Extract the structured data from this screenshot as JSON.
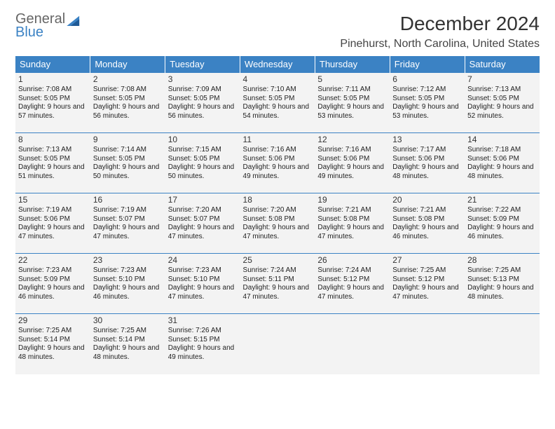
{
  "brand": {
    "top": "General",
    "bottom": "Blue"
  },
  "title": "December 2024",
  "location": "Pinehurst, North Carolina, United States",
  "colors": {
    "header_bg": "#3b82c4",
    "header_text": "#ffffff",
    "cell_bg": "#f3f3f3",
    "border": "#2f6ea8",
    "text": "#222222"
  },
  "day_headers": [
    "Sunday",
    "Monday",
    "Tuesday",
    "Wednesday",
    "Thursday",
    "Friday",
    "Saturday"
  ],
  "weeks": [
    [
      {
        "n": "1",
        "sr": "7:08 AM",
        "ss": "5:05 PM",
        "dl": "9 hours and 57 minutes."
      },
      {
        "n": "2",
        "sr": "7:08 AM",
        "ss": "5:05 PM",
        "dl": "9 hours and 56 minutes."
      },
      {
        "n": "3",
        "sr": "7:09 AM",
        "ss": "5:05 PM",
        "dl": "9 hours and 56 minutes."
      },
      {
        "n": "4",
        "sr": "7:10 AM",
        "ss": "5:05 PM",
        "dl": "9 hours and 54 minutes."
      },
      {
        "n": "5",
        "sr": "7:11 AM",
        "ss": "5:05 PM",
        "dl": "9 hours and 53 minutes."
      },
      {
        "n": "6",
        "sr": "7:12 AM",
        "ss": "5:05 PM",
        "dl": "9 hours and 53 minutes."
      },
      {
        "n": "7",
        "sr": "7:13 AM",
        "ss": "5:05 PM",
        "dl": "9 hours and 52 minutes."
      }
    ],
    [
      {
        "n": "8",
        "sr": "7:13 AM",
        "ss": "5:05 PM",
        "dl": "9 hours and 51 minutes."
      },
      {
        "n": "9",
        "sr": "7:14 AM",
        "ss": "5:05 PM",
        "dl": "9 hours and 50 minutes."
      },
      {
        "n": "10",
        "sr": "7:15 AM",
        "ss": "5:05 PM",
        "dl": "9 hours and 50 minutes."
      },
      {
        "n": "11",
        "sr": "7:16 AM",
        "ss": "5:06 PM",
        "dl": "9 hours and 49 minutes."
      },
      {
        "n": "12",
        "sr": "7:16 AM",
        "ss": "5:06 PM",
        "dl": "9 hours and 49 minutes."
      },
      {
        "n": "13",
        "sr": "7:17 AM",
        "ss": "5:06 PM",
        "dl": "9 hours and 48 minutes."
      },
      {
        "n": "14",
        "sr": "7:18 AM",
        "ss": "5:06 PM",
        "dl": "9 hours and 48 minutes."
      }
    ],
    [
      {
        "n": "15",
        "sr": "7:19 AM",
        "ss": "5:06 PM",
        "dl": "9 hours and 47 minutes."
      },
      {
        "n": "16",
        "sr": "7:19 AM",
        "ss": "5:07 PM",
        "dl": "9 hours and 47 minutes."
      },
      {
        "n": "17",
        "sr": "7:20 AM",
        "ss": "5:07 PM",
        "dl": "9 hours and 47 minutes."
      },
      {
        "n": "18",
        "sr": "7:20 AM",
        "ss": "5:08 PM",
        "dl": "9 hours and 47 minutes."
      },
      {
        "n": "19",
        "sr": "7:21 AM",
        "ss": "5:08 PM",
        "dl": "9 hours and 47 minutes."
      },
      {
        "n": "20",
        "sr": "7:21 AM",
        "ss": "5:08 PM",
        "dl": "9 hours and 46 minutes."
      },
      {
        "n": "21",
        "sr": "7:22 AM",
        "ss": "5:09 PM",
        "dl": "9 hours and 46 minutes."
      }
    ],
    [
      {
        "n": "22",
        "sr": "7:23 AM",
        "ss": "5:09 PM",
        "dl": "9 hours and 46 minutes."
      },
      {
        "n": "23",
        "sr": "7:23 AM",
        "ss": "5:10 PM",
        "dl": "9 hours and 46 minutes."
      },
      {
        "n": "24",
        "sr": "7:23 AM",
        "ss": "5:10 PM",
        "dl": "9 hours and 47 minutes."
      },
      {
        "n": "25",
        "sr": "7:24 AM",
        "ss": "5:11 PM",
        "dl": "9 hours and 47 minutes."
      },
      {
        "n": "26",
        "sr": "7:24 AM",
        "ss": "5:12 PM",
        "dl": "9 hours and 47 minutes."
      },
      {
        "n": "27",
        "sr": "7:25 AM",
        "ss": "5:12 PM",
        "dl": "9 hours and 47 minutes."
      },
      {
        "n": "28",
        "sr": "7:25 AM",
        "ss": "5:13 PM",
        "dl": "9 hours and 48 minutes."
      }
    ],
    [
      {
        "n": "29",
        "sr": "7:25 AM",
        "ss": "5:14 PM",
        "dl": "9 hours and 48 minutes."
      },
      {
        "n": "30",
        "sr": "7:25 AM",
        "ss": "5:14 PM",
        "dl": "9 hours and 48 minutes."
      },
      {
        "n": "31",
        "sr": "7:26 AM",
        "ss": "5:15 PM",
        "dl": "9 hours and 49 minutes."
      },
      null,
      null,
      null,
      null
    ]
  ],
  "labels": {
    "sunrise": "Sunrise:",
    "sunset": "Sunset:",
    "daylight": "Daylight:"
  }
}
